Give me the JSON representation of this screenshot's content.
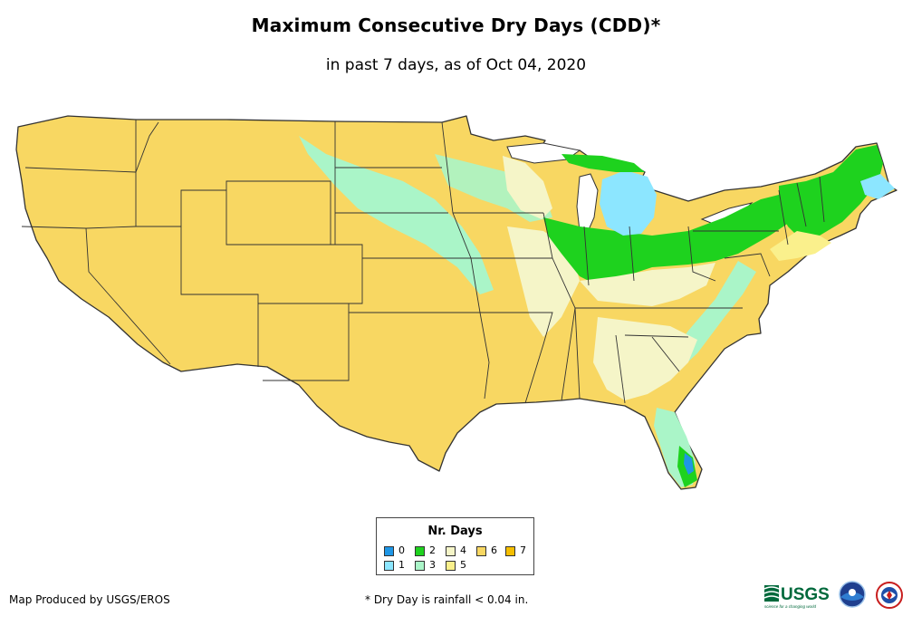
{
  "title": "Maximum Consecutive Dry Days (CDD)*",
  "subtitle": "in past 7 days, as of Oct 04, 2020",
  "legend": {
    "title": "Nr. Days",
    "items": [
      {
        "label": "0",
        "color": "#1e96e6"
      },
      {
        "label": "1",
        "color": "#8ce6ff"
      },
      {
        "label": "2",
        "color": "#1ed21e"
      },
      {
        "label": "3",
        "color": "#aaf5c8"
      },
      {
        "label": "4",
        "color": "#f5f5c8"
      },
      {
        "label": "5",
        "color": "#faf08c"
      },
      {
        "label": "6",
        "color": "#f8d762"
      },
      {
        "label": "7",
        "color": "#f5be00"
      }
    ]
  },
  "credits": {
    "left": "Map Produced by USGS/EROS",
    "footnote": "* Dry Day is rainfall < 0.04 in."
  },
  "logos": {
    "usgs_text": "USGS",
    "usgs_tagline": "science for a changing world"
  },
  "map": {
    "region": "contiguous-united-states",
    "dominant_value": "6",
    "features": [
      {
        "area": "michigan-lower-peninsula",
        "value": "1"
      },
      {
        "area": "northeast-new-england",
        "value": "2"
      },
      {
        "area": "great-lakes-ohio-valley",
        "value": "2"
      },
      {
        "area": "upper-midwest-band",
        "value": "3"
      },
      {
        "area": "northern-plains-band",
        "value": "3"
      },
      {
        "area": "florida-peninsula",
        "value": "3"
      },
      {
        "area": "south-florida-east-coast",
        "value": "2"
      },
      {
        "area": "mississippi-valley",
        "value": "4"
      },
      {
        "area": "southeast-coastal-plain",
        "value": "4"
      }
    ]
  }
}
